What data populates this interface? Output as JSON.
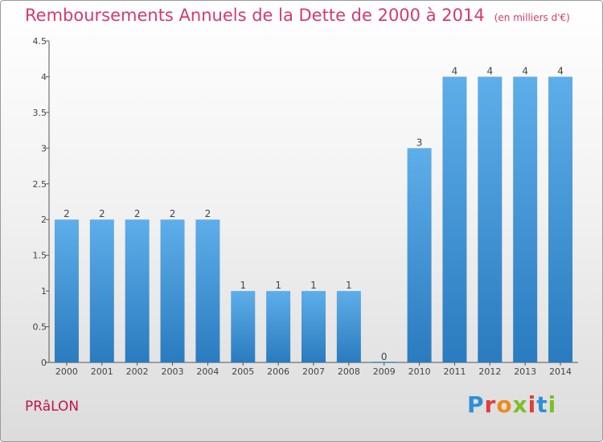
{
  "header": {
    "title": "Remboursements Annuels de la Dette de 2000 à 2014",
    "unit": "(en milliers d'€)"
  },
  "footer": {
    "commune": "PRâLON",
    "brand": "Proxiti"
  },
  "colors": {
    "title": "#d63a6c",
    "commune": "#c0144c",
    "bar_top": "#5eaeea",
    "bar_bottom": "#2a7bbf",
    "brand_letters": [
      "#2f8fd6",
      "#e03d3d",
      "#f08a1c",
      "#7bbf2a",
      "#e03d3d",
      "#2f8fd6",
      "#7bbf2a"
    ]
  },
  "chart_data": {
    "type": "bar",
    "title": "Remboursements Annuels de la Dette de 2000 à 2014",
    "xlabel": "",
    "ylabel": "en milliers d'€",
    "categories": [
      "2000",
      "2001",
      "2002",
      "2003",
      "2004",
      "2005",
      "2006",
      "2007",
      "2008",
      "2009",
      "2010",
      "2011",
      "2012",
      "2013",
      "2014"
    ],
    "values": [
      2,
      2,
      2,
      2,
      2,
      1,
      1,
      1,
      1,
      0,
      3,
      4,
      4,
      4,
      4
    ],
    "value_labels": [
      "2",
      "2",
      "2",
      "2",
      "2",
      "1",
      "1",
      "1",
      "1",
      "0",
      "3",
      "4",
      "4",
      "4",
      "4"
    ],
    "ylim": [
      0,
      4.5
    ],
    "yticks": [
      0,
      0.5,
      1,
      1.5,
      2,
      2.5,
      3,
      3.5,
      4,
      4.5
    ],
    "ytick_labels": [
      "0",
      "0.5",
      "1",
      "1.5",
      "2",
      "2.5",
      "3",
      "3.5",
      "4",
      "4.5"
    ],
    "grid": false
  }
}
